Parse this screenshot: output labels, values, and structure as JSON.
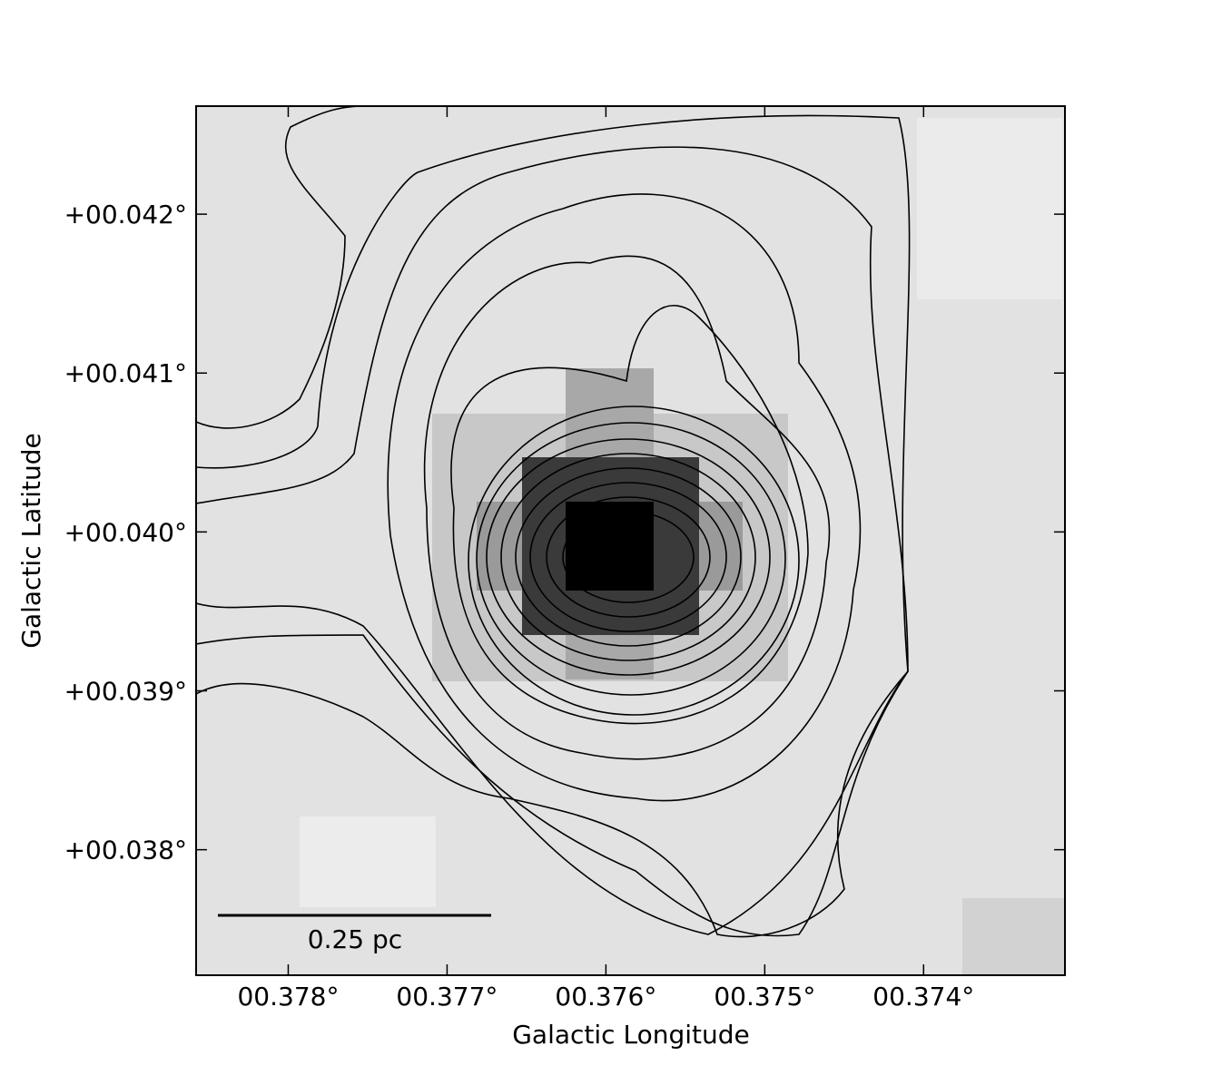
{
  "chart_data": {
    "type": "image",
    "xlabel": "Galactic Longitude",
    "ylabel": "Galactic Latitude",
    "xlim": [
      0.37858,
      0.37311
    ],
    "ylim": [
      0.03721,
      0.04268
    ],
    "xticks": [
      {
        "value": 0.378,
        "label": "00.378°"
      },
      {
        "value": 0.377,
        "label": "00.377°"
      },
      {
        "value": 0.376,
        "label": "00.376°"
      },
      {
        "value": 0.375,
        "label": "00.375°"
      },
      {
        "value": 0.374,
        "label": "00.374°"
      }
    ],
    "yticks": [
      {
        "value": 0.042,
        "label": "+00.042°"
      },
      {
        "value": 0.041,
        "label": "+00.041°"
      },
      {
        "value": 0.04,
        "label": "+00.040°"
      },
      {
        "value": 0.039,
        "label": "+00.039°"
      },
      {
        "value": 0.038,
        "label": "+00.038°"
      }
    ],
    "scalebar": {
      "label": "0.25 pc"
    }
  }
}
